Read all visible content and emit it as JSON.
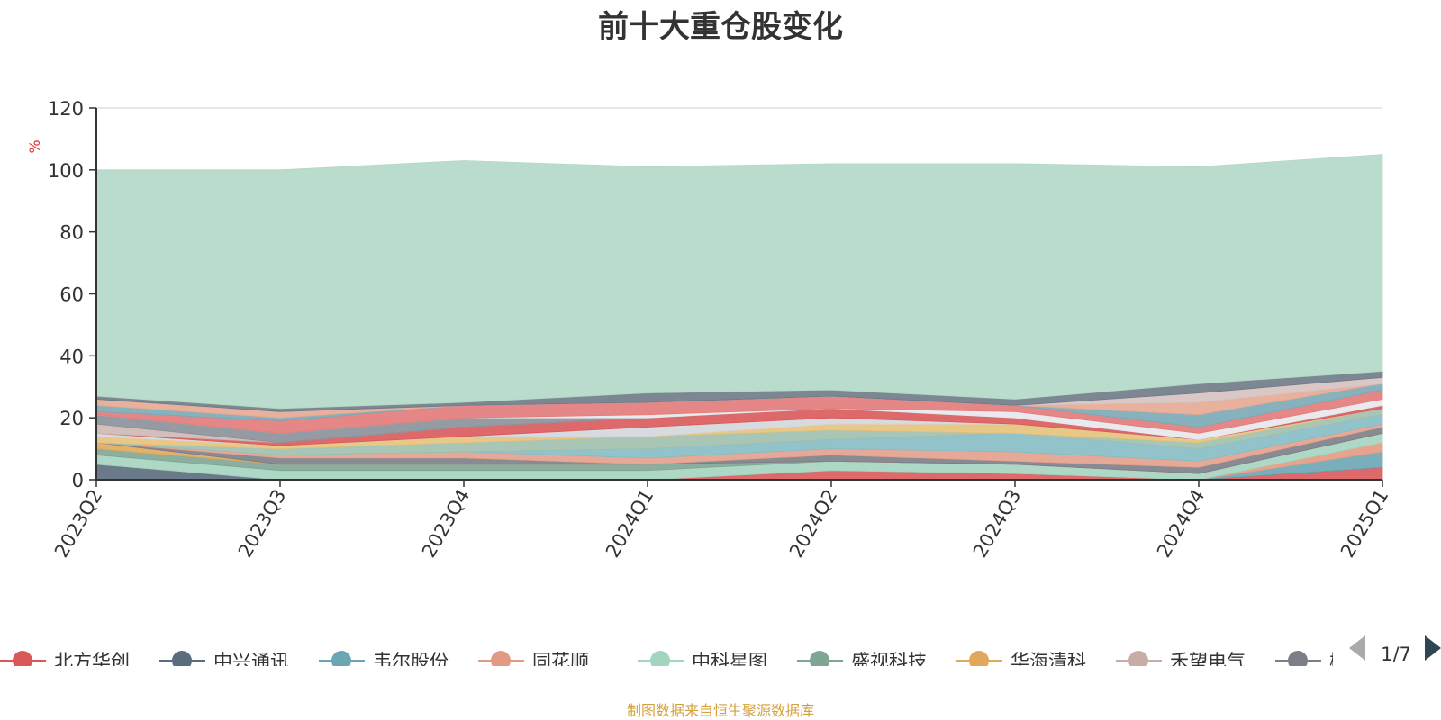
{
  "source_note": "制图数据来自恒生聚源数据库",
  "legend_page": "1/7",
  "chart_data": {
    "type": "area",
    "stacked": true,
    "title": "前十大重仓股变化",
    "ylabel": "%",
    "ylim": [
      0,
      120
    ],
    "yticks": [
      0,
      20,
      40,
      60,
      80,
      100,
      120
    ],
    "grid": true,
    "legend_position": "bottom",
    "categories": [
      "2023Q2",
      "2023Q3",
      "2023Q4",
      "2024Q1",
      "2024Q2",
      "2024Q3",
      "2024Q4",
      "2025Q1"
    ],
    "series": [
      {
        "name": "北方华创",
        "color": "#d9595b",
        "values": [
          0,
          0,
          0,
          0,
          3,
          2,
          0,
          4
        ]
      },
      {
        "name": "中兴通讯",
        "color": "#5b6c7e",
        "values": [
          5,
          0,
          0,
          0,
          0,
          0,
          0,
          0
        ]
      },
      {
        "name": "韦尔股份",
        "color": "#6aa6b3",
        "values": [
          0,
          0,
          0,
          0,
          0,
          0,
          0,
          5
        ]
      },
      {
        "name": "同花顺",
        "color": "#e39a82",
        "values": [
          0,
          0,
          0,
          0,
          0,
          0,
          0,
          3
        ]
      },
      {
        "name": "中科星图",
        "color": "#a3d4bf",
        "values": [
          3,
          3,
          3,
          3,
          3,
          3,
          2,
          3
        ]
      },
      {
        "name": "盛视科技",
        "color": "#7fa594",
        "values": [
          2,
          2,
          2,
          2,
          0,
          0,
          0,
          0
        ]
      },
      {
        "name": "华海清科",
        "color": "#e0a85a",
        "values": [
          2,
          0,
          0,
          0,
          0,
          0,
          0,
          0
        ]
      },
      {
        "name": "禾望电气",
        "color": "#c8aca6",
        "values": [
          0,
          0,
          0,
          0,
          0,
          0,
          0,
          0
        ]
      },
      {
        "name": "柳工",
        "color": "#7b7e86",
        "values": [
          0,
          2,
          2,
          0,
          2,
          1,
          2,
          2
        ]
      }
    ],
    "other_layers": [
      {
        "color": "#e3a08c",
        "values": [
          0,
          1,
          2,
          2,
          2,
          3,
          2,
          1
        ]
      },
      {
        "color": "#86bcc4",
        "values": [
          0,
          0,
          0,
          3,
          3,
          6,
          4,
          3
        ]
      },
      {
        "color": "#9ebfae",
        "values": [
          0,
          2,
          3,
          4,
          3,
          0,
          2,
          2
        ]
      },
      {
        "color": "#e5c27a",
        "values": [
          2,
          1,
          2,
          0,
          2,
          3,
          1,
          0
        ]
      },
      {
        "color": "#d3d6dc",
        "values": [
          1,
          0,
          0,
          3,
          2,
          0,
          0,
          0
        ]
      },
      {
        "color": "#d9595b",
        "values": [
          0,
          1,
          3,
          3,
          3,
          2,
          0,
          1
        ]
      },
      {
        "color": "#cdb7b2",
        "values": [
          3,
          0,
          0,
          0,
          0,
          0,
          0,
          0
        ]
      },
      {
        "color": "#8a9099",
        "values": [
          3,
          3,
          3,
          0,
          0,
          0,
          0,
          0
        ]
      },
      {
        "color": "#e8e8ec",
        "values": [
          0,
          0,
          0,
          1,
          0,
          2,
          2,
          2
        ]
      },
      {
        "color": "#e37a7a",
        "values": [
          1,
          4,
          4,
          4,
          4,
          2,
          2,
          3
        ]
      },
      {
        "color": "#7aa9b5",
        "values": [
          2,
          1,
          0,
          0,
          0,
          0,
          4,
          2
        ]
      },
      {
        "color": "#e6a893",
        "values": [
          2,
          2,
          0,
          0,
          0,
          0,
          4,
          0
        ]
      },
      {
        "color": "#d6c2c0",
        "values": [
          0,
          0,
          0,
          0,
          0,
          0,
          3,
          2
        ]
      },
      {
        "color": "#6e7a85",
        "values": [
          1,
          1,
          1,
          3,
          2,
          2,
          3,
          2
        ]
      },
      {
        "color": "#b2d8c6",
        "values": [
          73,
          77,
          78,
          73,
          73,
          76,
          70,
          70
        ]
      }
    ]
  }
}
